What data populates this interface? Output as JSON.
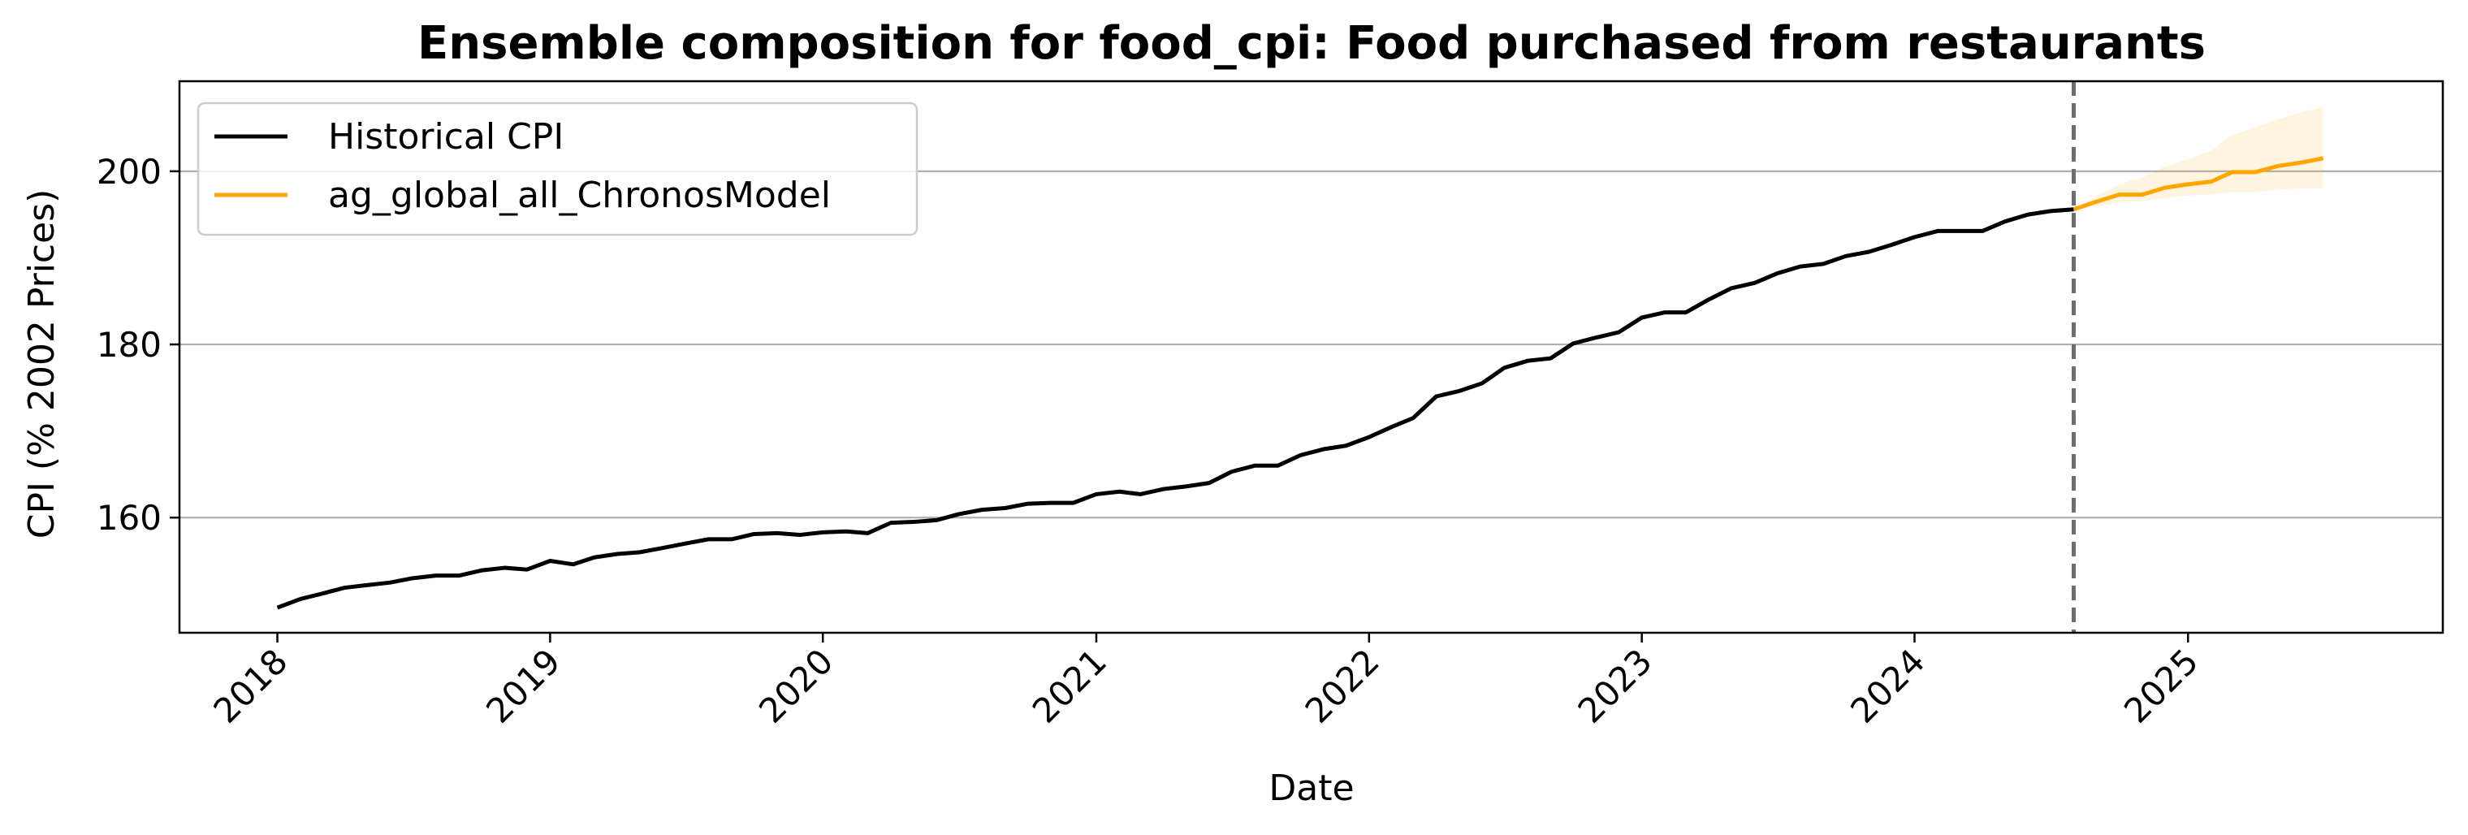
{
  "chart_data": {
    "type": "line",
    "title": "Ensemble composition for food_cpi: Food purchased from restaurants",
    "xlabel": "Date",
    "ylabel": "CPI (% 2002 Prices)",
    "xlim": [
      "2017-08-23",
      "2025-12-08"
    ],
    "ylim": [
      146.7,
      210.4
    ],
    "x_ticks": [
      "2018",
      "2019",
      "2020",
      "2021",
      "2022",
      "2023",
      "2024",
      "2025"
    ],
    "y_ticks": [
      160,
      180,
      200
    ],
    "grid": "horizontal",
    "legend_position": "top-left",
    "forecast_start": "2024-08-01",
    "series": [
      {
        "name": "Historical CPI",
        "color": "#000000",
        "start": "2018-01",
        "values": [
          149.6,
          150.6,
          151.2,
          151.9,
          152.2,
          152.5,
          153.0,
          153.3,
          153.3,
          153.9,
          154.2,
          154.0,
          155.0,
          154.6,
          155.4,
          155.8,
          156.0,
          156.5,
          157.0,
          157.5,
          157.5,
          158.1,
          158.2,
          158.0,
          158.3,
          158.4,
          158.2,
          159.4,
          159.5,
          159.7,
          160.4,
          160.9,
          161.1,
          161.6,
          161.7,
          161.7,
          162.7,
          163.0,
          162.7,
          163.3,
          163.6,
          164.0,
          165.3,
          166.0,
          166.0,
          167.2,
          167.9,
          168.3,
          169.3,
          170.5,
          171.5,
          174.0,
          174.6,
          175.5,
          177.3,
          178.1,
          178.4,
          180.1,
          180.8,
          181.4,
          183.1,
          183.7,
          183.7,
          185.2,
          186.5,
          187.1,
          188.2,
          189.0,
          189.3,
          190.2,
          190.7,
          191.5,
          192.4,
          193.1,
          193.1,
          193.1,
          194.2,
          195.0,
          195.4,
          195.6
        ]
      },
      {
        "name": "ag_global_all_ChronosModel",
        "color": "#ffa500",
        "start": "2024-08",
        "values": [
          195.6,
          196.5,
          197.3,
          197.3,
          198.1,
          198.5,
          198.8,
          199.9,
          199.9,
          200.6,
          201.0,
          201.5
        ],
        "lower": [
          195.6,
          195.9,
          196.4,
          196.6,
          196.9,
          197.2,
          197.3,
          197.6,
          197.6,
          197.9,
          198.0,
          198.0
        ],
        "upper": [
          195.6,
          197.2,
          198.5,
          199.3,
          200.5,
          201.4,
          202.4,
          204.2,
          205.1,
          206.0,
          206.8,
          207.4
        ],
        "band_color": "#ffa500",
        "band_opacity": 0.12
      }
    ]
  }
}
